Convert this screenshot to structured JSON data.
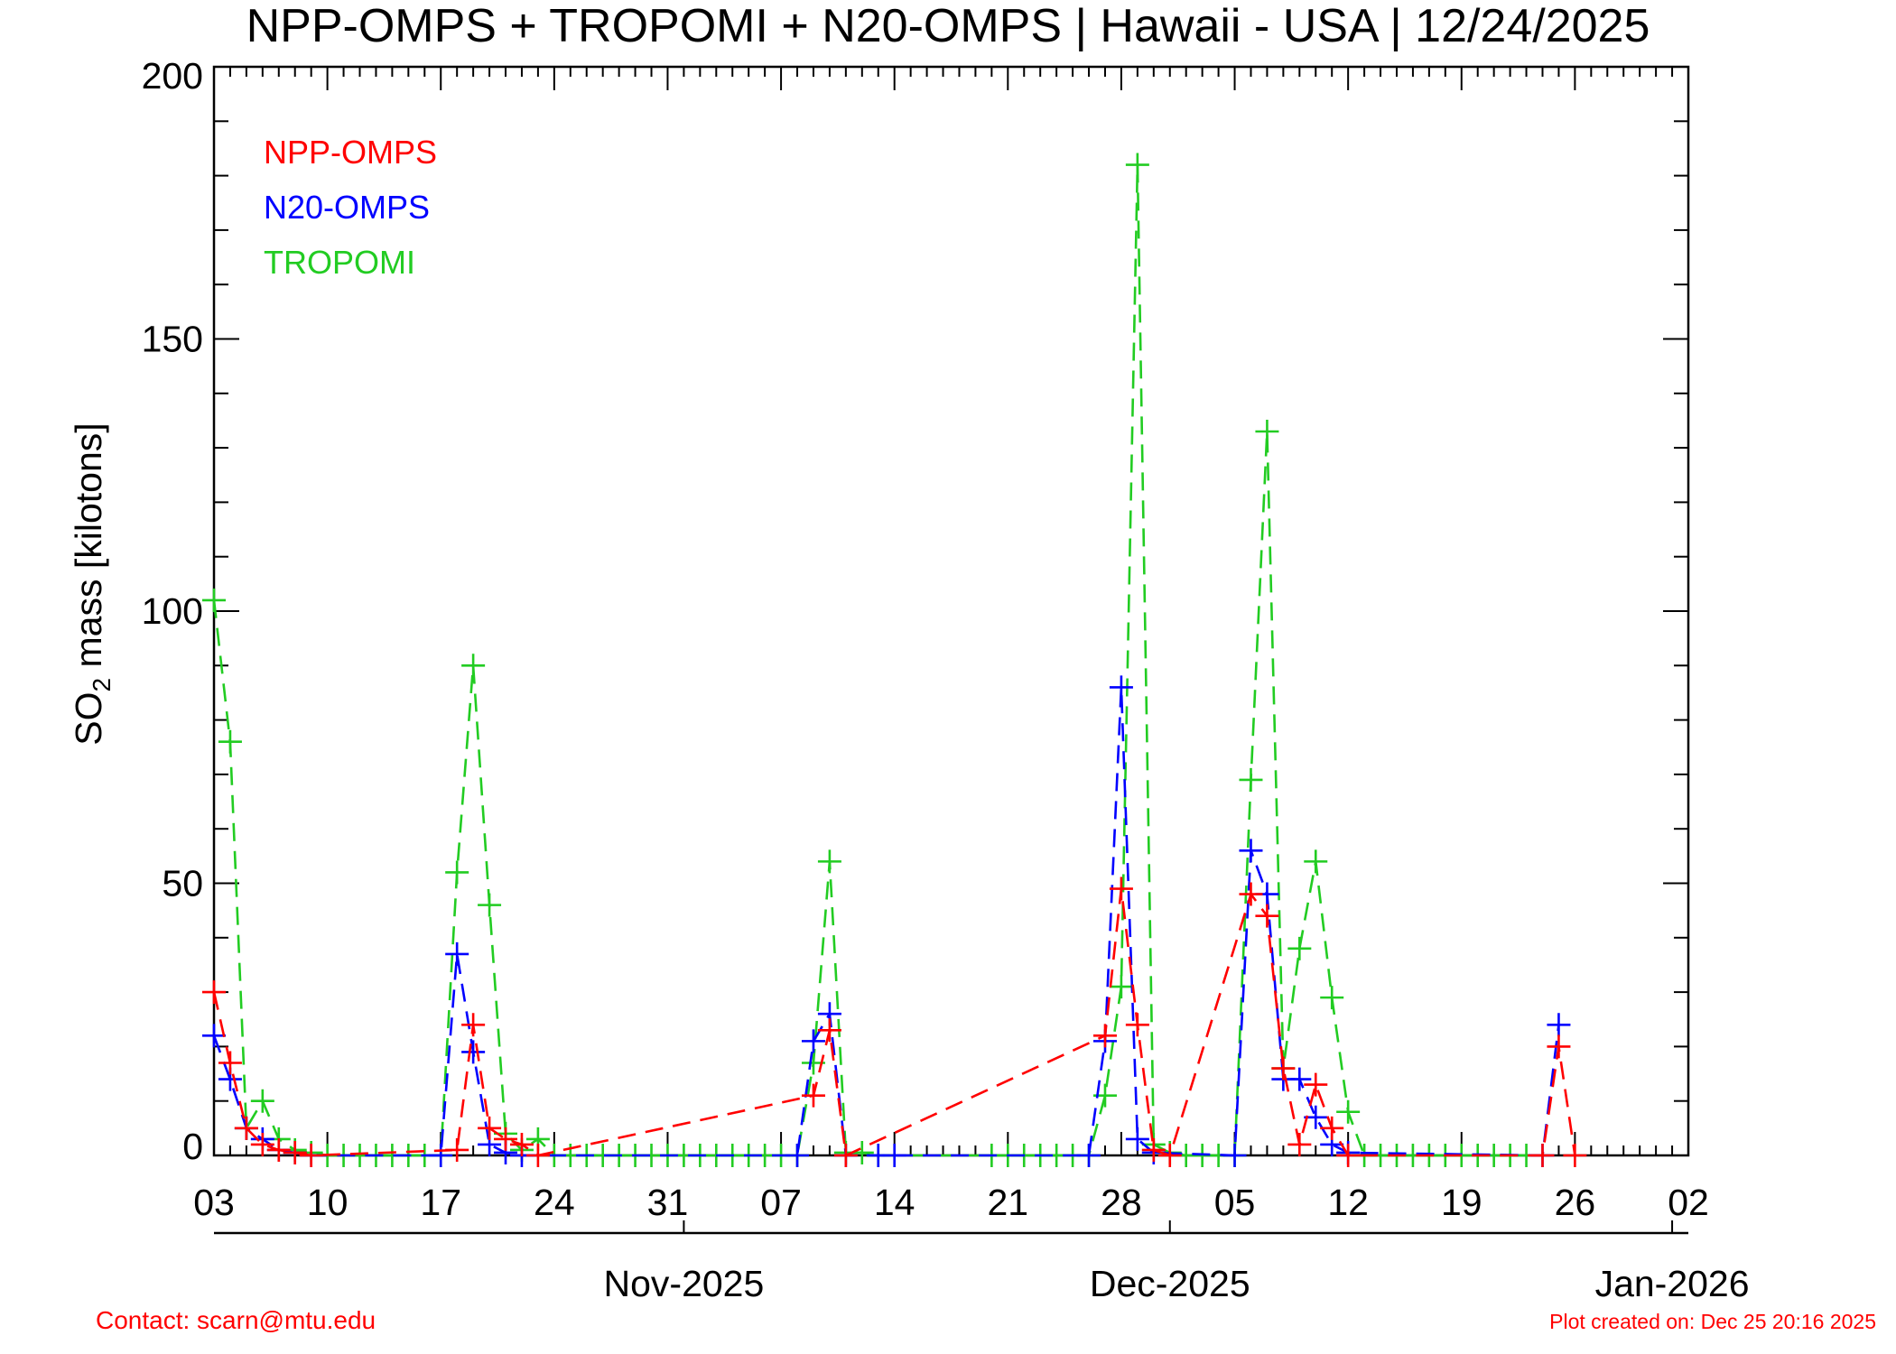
{
  "chart_data": {
    "type": "line",
    "title": "NPP-OMPS + TROPOMI + N20-OMPS | Hawaii - USA | 12/24/2025",
    "ylabel_parts": [
      "SO",
      "2",
      " mass [kilotons]"
    ],
    "ylim": [
      0,
      200
    ],
    "y_major_ticks": [
      0,
      50,
      100,
      150,
      200
    ],
    "y_minor_step": 10,
    "x_start": "2025-10-03",
    "x_end": "2026-01-02",
    "x_tick_labels": [
      "03",
      "10",
      "17",
      "24",
      "31",
      "07",
      "14",
      "21",
      "28",
      "05",
      "12",
      "19",
      "26",
      "02"
    ],
    "month_labels": [
      "Nov-2025",
      "Dec-2025",
      "Jan-2026"
    ],
    "grid": false,
    "legend_position": "top-left",
    "series": [
      {
        "name": "NPP-OMPS",
        "color": "#ff0000",
        "points": [
          [
            "2025-10-03",
            30
          ],
          [
            "2025-10-04",
            17
          ],
          [
            "2025-10-05",
            5
          ],
          [
            "2025-10-06",
            2
          ],
          [
            "2025-10-07",
            1
          ],
          [
            "2025-10-08",
            0.5
          ],
          [
            "2025-10-09",
            0
          ],
          [
            "2025-10-18",
            1
          ],
          [
            "2025-10-19",
            24
          ],
          [
            "2025-10-20",
            5
          ],
          [
            "2025-10-21",
            3
          ],
          [
            "2025-10-22",
            2
          ],
          [
            "2025-10-23",
            0
          ],
          [
            "2025-11-09",
            11
          ],
          [
            "2025-11-10",
            23
          ],
          [
            "2025-11-11",
            0
          ],
          [
            "2025-11-27",
            22
          ],
          [
            "2025-11-28",
            49
          ],
          [
            "2025-11-29",
            24
          ],
          [
            "2025-11-30",
            1
          ],
          [
            "2025-12-01",
            0
          ],
          [
            "2025-12-06",
            48
          ],
          [
            "2025-12-07",
            44
          ],
          [
            "2025-12-08",
            16
          ],
          [
            "2025-12-09",
            2
          ],
          [
            "2025-12-10",
            13
          ],
          [
            "2025-12-11",
            5
          ],
          [
            "2025-12-12",
            0
          ],
          [
            "2025-12-24",
            0
          ],
          [
            "2025-12-25",
            20
          ],
          [
            "2025-12-26",
            0
          ]
        ]
      },
      {
        "name": "N20-OMPS",
        "color": "#0000ff",
        "points": [
          [
            "2025-10-03",
            22
          ],
          [
            "2025-10-04",
            14
          ],
          [
            "2025-10-05",
            5
          ],
          [
            "2025-10-06",
            3
          ],
          [
            "2025-10-07",
            1
          ],
          [
            "2025-10-08",
            0.5
          ],
          [
            "2025-10-09",
            0
          ],
          [
            "2025-10-17",
            0
          ],
          [
            "2025-10-18",
            37
          ],
          [
            "2025-10-19",
            19
          ],
          [
            "2025-10-20",
            2
          ],
          [
            "2025-10-21",
            0.5
          ],
          [
            "2025-10-22",
            0
          ],
          [
            "2025-11-08",
            0
          ],
          [
            "2025-11-09",
            21
          ],
          [
            "2025-11-10",
            26
          ],
          [
            "2025-11-11",
            0
          ],
          [
            "2025-11-13",
            0
          ],
          [
            "2025-11-14",
            0
          ],
          [
            "2025-11-26",
            0
          ],
          [
            "2025-11-27",
            21
          ],
          [
            "2025-11-28",
            86
          ],
          [
            "2025-11-29",
            3
          ],
          [
            "2025-11-30",
            0.5
          ],
          [
            "2025-12-05",
            0
          ],
          [
            "2025-12-06",
            56
          ],
          [
            "2025-12-07",
            48
          ],
          [
            "2025-12-08",
            14
          ],
          [
            "2025-12-09",
            14
          ],
          [
            "2025-12-10",
            7
          ],
          [
            "2025-12-11",
            2
          ],
          [
            "2025-12-12",
            0.5
          ],
          [
            "2025-12-24",
            0
          ],
          [
            "2025-12-25",
            24
          ]
        ]
      },
      {
        "name": "TROPOMI",
        "color": "#22cc22",
        "points": [
          [
            "2025-10-03",
            102
          ],
          [
            "2025-10-04",
            76
          ],
          [
            "2025-10-05",
            5
          ],
          [
            "2025-10-06",
            10
          ],
          [
            "2025-10-07",
            3
          ],
          [
            "2025-10-08",
            1
          ],
          [
            "2025-10-09",
            0.5
          ],
          [
            "2025-10-10",
            0
          ],
          [
            "2025-10-11",
            0
          ],
          [
            "2025-10-12",
            0
          ],
          [
            "2025-10-13",
            0
          ],
          [
            "2025-10-14",
            0
          ],
          [
            "2025-10-15",
            0
          ],
          [
            "2025-10-16",
            0
          ],
          [
            "2025-10-17",
            0
          ],
          [
            "2025-10-18",
            52
          ],
          [
            "2025-10-19",
            90
          ],
          [
            "2025-10-20",
            46
          ],
          [
            "2025-10-21",
            4
          ],
          [
            "2025-10-22",
            1
          ],
          [
            "2025-10-23",
            3
          ],
          [
            "2025-10-24",
            0
          ],
          [
            "2025-10-25",
            0
          ],
          [
            "2025-10-26",
            0
          ],
          [
            "2025-10-27",
            0
          ],
          [
            "2025-10-28",
            0
          ],
          [
            "2025-10-29",
            0
          ],
          [
            "2025-10-30",
            0
          ],
          [
            "2025-10-31",
            0
          ],
          [
            "2025-11-01",
            0
          ],
          [
            "2025-11-02",
            0
          ],
          [
            "2025-11-03",
            0
          ],
          [
            "2025-11-04",
            0
          ],
          [
            "2025-11-05",
            0
          ],
          [
            "2025-11-06",
            0
          ],
          [
            "2025-11-07",
            0
          ],
          [
            "2025-11-08",
            0
          ],
          [
            "2025-11-09",
            17
          ],
          [
            "2025-11-10",
            54
          ],
          [
            "2025-11-11",
            0.5
          ],
          [
            "2025-11-12",
            0.5
          ],
          [
            "2025-11-13",
            0
          ],
          [
            "2025-11-20",
            0
          ],
          [
            "2025-11-21",
            0
          ],
          [
            "2025-11-22",
            0
          ],
          [
            "2025-11-23",
            0
          ],
          [
            "2025-11-24",
            0
          ],
          [
            "2025-11-25",
            0
          ],
          [
            "2025-11-26",
            0
          ],
          [
            "2025-11-27",
            11
          ],
          [
            "2025-11-28",
            31
          ],
          [
            "2025-11-29",
            182
          ],
          [
            "2025-11-30",
            2
          ],
          [
            "2025-12-01",
            0.5
          ],
          [
            "2025-12-02",
            0
          ],
          [
            "2025-12-03",
            0
          ],
          [
            "2025-12-04",
            0
          ],
          [
            "2025-12-05",
            0
          ],
          [
            "2025-12-06",
            69
          ],
          [
            "2025-12-07",
            133
          ],
          [
            "2025-12-08",
            16
          ],
          [
            "2025-12-09",
            38
          ],
          [
            "2025-12-10",
            54
          ],
          [
            "2025-12-11",
            29
          ],
          [
            "2025-12-12",
            8
          ],
          [
            "2025-12-13",
            0
          ],
          [
            "2025-12-14",
            0
          ],
          [
            "2025-12-15",
            0
          ],
          [
            "2025-12-16",
            0
          ],
          [
            "2025-12-17",
            0
          ],
          [
            "2025-12-18",
            0
          ],
          [
            "2025-12-19",
            0
          ],
          [
            "2025-12-20",
            0
          ],
          [
            "2025-12-21",
            0
          ],
          [
            "2025-12-22",
            0
          ],
          [
            "2025-12-23",
            0
          ]
        ]
      }
    ]
  },
  "footer": {
    "contact": "Contact: scarn@mtu.edu",
    "created": "Plot created on: Dec 25 20:16 2025"
  }
}
